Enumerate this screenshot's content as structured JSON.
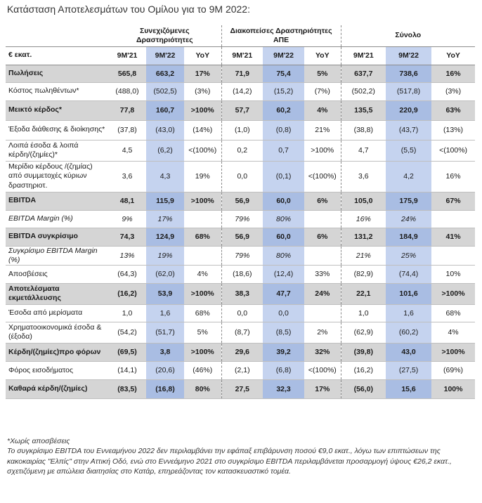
{
  "title": "Κατάσταση Αποτελεσμάτων του Ομίλου για το 9Μ 2022:",
  "groups": {
    "continuing": "Συνεχιζόμενες Δραστηριότητες",
    "discontinued": "Διακοπείσες Δραστηριότητες ΑΠΕ",
    "total": "Σύνολο"
  },
  "columns": {
    "unit": "€ εκατ.",
    "c21": "9M'21",
    "c22": "9M'22",
    "cy": "YoY",
    "d21": "9M'21",
    "d22": "9M'22",
    "dy": "YoY",
    "t21": "9M'21",
    "t22": "9M'22",
    "ty": "YoY"
  },
  "rows": [
    {
      "label": "Πωλήσεις",
      "c21": "565,8",
      "c22": "663,2",
      "cy": "17%",
      "d21": "71,9",
      "d22": "75,4",
      "dy": "5%",
      "t21": "637,7",
      "t22": "738,6",
      "ty": "16%"
    },
    {
      "label": "Κόστος πωληθέντων*",
      "c21": "(488,0)",
      "c22": "(502,5)",
      "cy": "(3%)",
      "d21": "(14,2)",
      "d22": "(15,2)",
      "dy": "(7%)",
      "t21": "(502,2)",
      "t22": "(517,8)",
      "ty": "(3%)"
    },
    {
      "label": "Μεικτό κέρδος*",
      "c21": "77,8",
      "c22": "160,7",
      "cy": ">100%",
      "d21": "57,7",
      "d22": "60,2",
      "dy": "4%",
      "t21": "135,5",
      "t22": "220,9",
      "ty": "63%"
    },
    {
      "label": "Έξοδα διάθεσης & διοίκησης*",
      "c21": "(37,8)",
      "c22": "(43,0)",
      "cy": "(14%)",
      "d21": "(1,0)",
      "d22": "(0,8)",
      "dy": "21%",
      "t21": "(38,8)",
      "t22": "(43,7)",
      "ty": "(13%)"
    },
    {
      "label": "Λοιπά έσοδα & λοιπά κέρδη/(ζημίες)*",
      "c21": "4,5",
      "c22": "(6,2)",
      "cy": "<(100%)",
      "d21": "0,2",
      "d22": "0,7",
      "dy": ">100%",
      "t21": "4,7",
      "t22": "(5,5)",
      "ty": "<(100%)"
    },
    {
      "label": "Μερίδιο κέρδους /(ζημίας) από συμμετοχές κύριων δραστηριοτ.",
      "c21": "3,6",
      "c22": "4,3",
      "cy": "19%",
      "d21": "0,0",
      "d22": "(0,1)",
      "dy": "<(100%)",
      "t21": "3,6",
      "t22": "4,2",
      "ty": "16%"
    },
    {
      "label": "EBITDA",
      "c21": "48,1",
      "c22": "115,9",
      "cy": ">100%",
      "d21": "56,9",
      "d22": "60,0",
      "dy": "6%",
      "t21": "105,0",
      "t22": "175,9",
      "ty": "67%"
    },
    {
      "label": "EBITDA Margin (%)",
      "c21": "9%",
      "c22": "17%",
      "cy": "",
      "d21": "79%",
      "d22": "80%",
      "dy": "",
      "t21": "16%",
      "t22": "24%",
      "ty": ""
    },
    {
      "label": "EBITDA συγκρίσιμο",
      "c21": "74,3",
      "c22": "124,9",
      "cy": "68%",
      "d21": "56,9",
      "d22": "60,0",
      "dy": "6%",
      "t21": "131,2",
      "t22": "184,9",
      "ty": "41%"
    },
    {
      "label": "Συγκρίσιμο EBITDA Margin (%)",
      "c21": "13%",
      "c22": "19%",
      "cy": "",
      "d21": "79%",
      "d22": "80%",
      "dy": "",
      "t21": "21%",
      "t22": "25%",
      "ty": ""
    },
    {
      "label": "Αποσβέσεις",
      "c21": "(64,3)",
      "c22": "(62,0)",
      "cy": "4%",
      "d21": "(18,6)",
      "d22": "(12,4)",
      "dy": "33%",
      "t21": "(82,9)",
      "t22": "(74,4)",
      "ty": "10%"
    },
    {
      "label": "Αποτελέσματα εκμετάλλευσης",
      "c21": "(16,2)",
      "c22": "53,9",
      "cy": ">100%",
      "d21": "38,3",
      "d22": "47,7",
      "dy": "24%",
      "t21": "22,1",
      "t22": "101,6",
      "ty": ">100%"
    },
    {
      "label": "Έσοδα από μερίσματα",
      "c21": "1,0",
      "c22": "1,6",
      "cy": "68%",
      "d21": "0,0",
      "d22": "0,0",
      "dy": "",
      "t21": "1,0",
      "t22": "1,6",
      "ty": "68%"
    },
    {
      "label": "Χρηματοοικονομικά έσοδα & (έξοδα)",
      "c21": "(54,2)",
      "c22": "(51,7)",
      "cy": "5%",
      "d21": "(8,7)",
      "d22": "(8,5)",
      "dy": "2%",
      "t21": "(62,9)",
      "t22": "(60,2)",
      "ty": "4%"
    },
    {
      "label": "Κέρδη/(ζημίες)προ φόρων",
      "c21": "(69,5)",
      "c22": "3,8",
      "cy": ">100%",
      "d21": "29,6",
      "d22": "39,2",
      "dy": "32%",
      "t21": "(39,8)",
      "t22": "43,0",
      "ty": ">100%"
    },
    {
      "label": "Φόρος εισοδήματος",
      "c21": "(14,1)",
      "c22": "(20,6)",
      "cy": "(46%)",
      "d21": "(2,1)",
      "d22": "(6,8)",
      "dy": "<(100%)",
      "t21": "(16,2)",
      "t22": "(27,5)",
      "ty": "(69%)"
    },
    {
      "label": "Καθαρά κέρδη/(ζημίες)",
      "c21": "(83,5)",
      "c22": "(16,8)",
      "cy": "80%",
      "d21": "27,5",
      "d22": "32,3",
      "dy": "17%",
      "t21": "(56,0)",
      "t22": "15,6",
      "ty": "100%"
    }
  ],
  "notes": {
    "n1": "*Χωρίς αποσβέσεις",
    "n2": "Το συγκρίσιμο EBITDA του Εννεαμήνου 2022 δεν περιλαμβάνει την εφάπαξ επιβάρυνση ποσού €9,0 εκατ., λόγω των επιπτώσεων της κακοκαιρίας \"Ελπίς\" στην Αττική Οδό, ενώ στο Εννεάμηνο 2021 στο συγκρίσιμο EBITDA περιλαμβάνεται προσαρμογή ύψους €26,2 εκατ., σχετιζόμενη με απώλεια διαιτησίας στο Κατάρ, επηρεάζοντας τον κατασκευαστικό τομέα."
  },
  "colors": {
    "highlight": "#c5d3ef",
    "shade": "#d5d5d5",
    "shade_highlight": "#a9bde3"
  }
}
